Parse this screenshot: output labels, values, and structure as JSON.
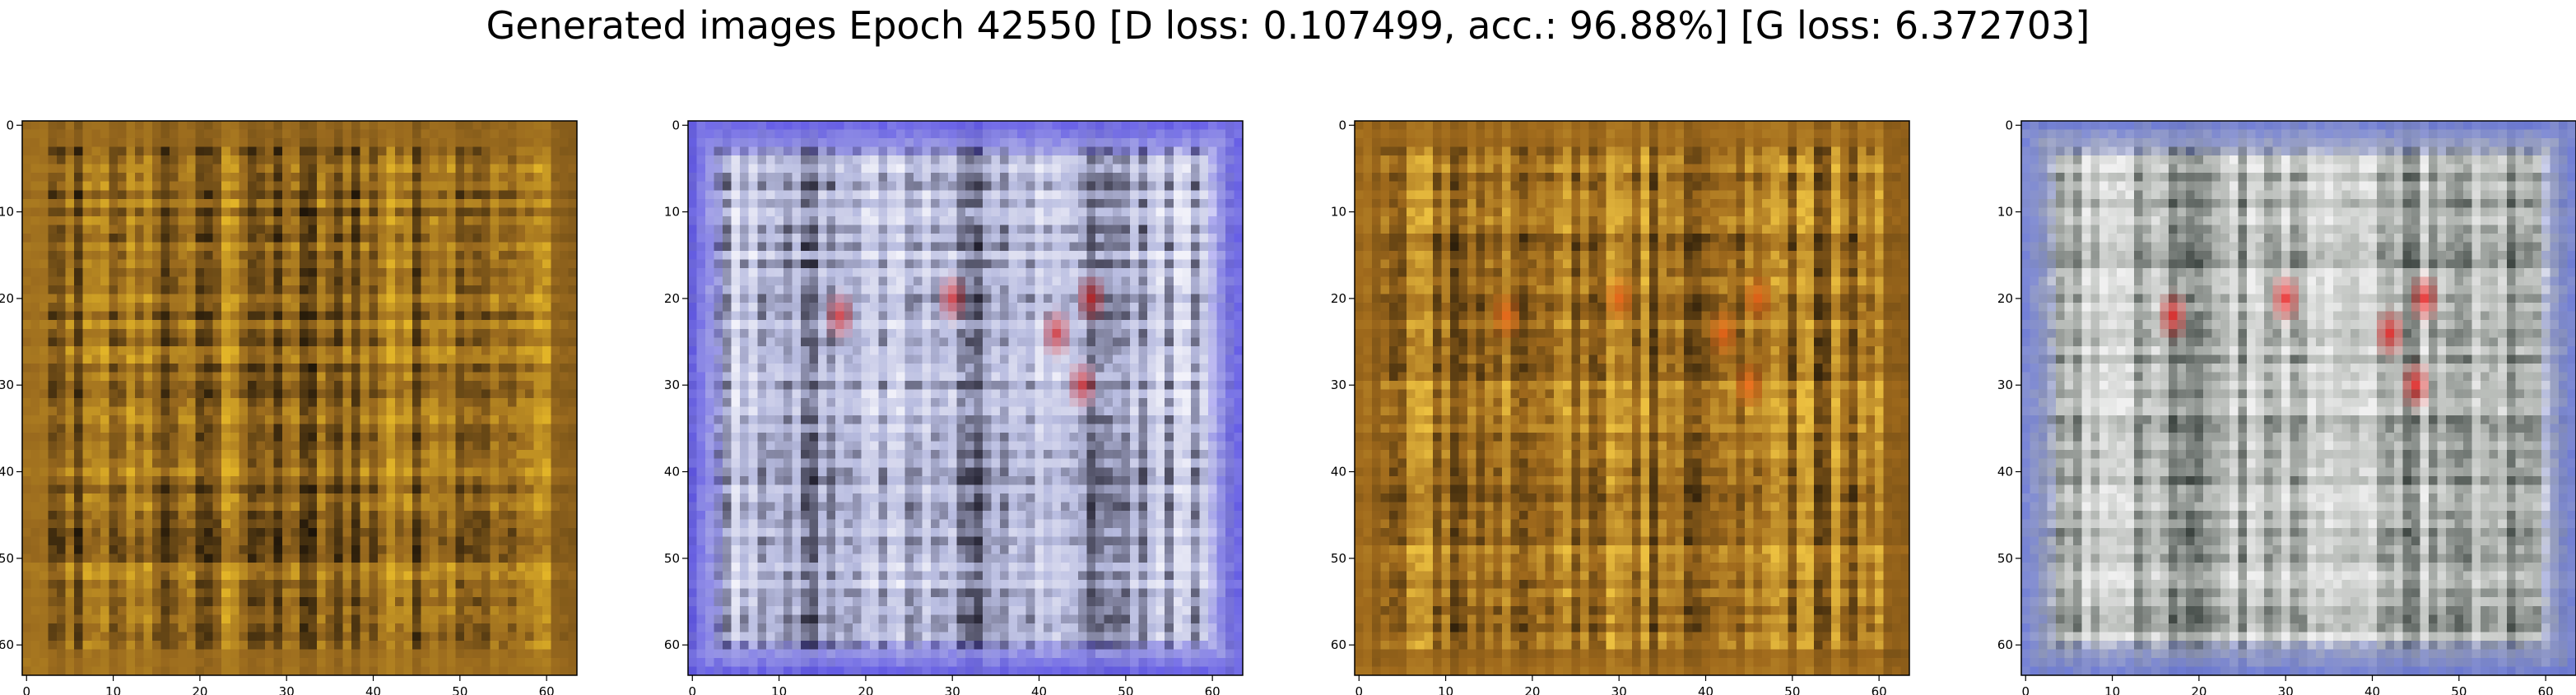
{
  "title": "Generated images Epoch 42550 [D loss: 0.107499, acc.: 96.88%] [G loss: 6.372703]",
  "chart_data": [
    {
      "type": "heatmap",
      "title": "",
      "xlabel": "",
      "ylabel": "",
      "xlim": [
        -0.5,
        63.5
      ],
      "ylim": [
        63.5,
        -0.5
      ],
      "xticks": [
        "0",
        "10",
        "20",
        "30",
        "40",
        "50",
        "60"
      ],
      "yticks": [
        "0",
        "10",
        "20",
        "30",
        "40",
        "50",
        "60"
      ],
      "grid": false,
      "palette": "golden-brown",
      "base_color": "#9a6a1e",
      "highlight_color": "#e2b428",
      "dark_color": "#1a1208",
      "accent_color": "#cc3a1a"
    },
    {
      "type": "heatmap",
      "title": "",
      "xlabel": "",
      "ylabel": "",
      "xlim": [
        -0.5,
        63.5
      ],
      "ylim": [
        63.5,
        -0.5
      ],
      "xticks": [
        "0",
        "10",
        "20",
        "30",
        "40",
        "50",
        "60"
      ],
      "yticks": [
        "0",
        "10",
        "20",
        "30",
        "40",
        "50",
        "60"
      ],
      "grid": false,
      "palette": "blue-white",
      "base_color": "#b8bce0",
      "highlight_color": "#f2f2fa",
      "dark_color": "#1e1c2a",
      "accent_color": "#d82a2a",
      "edge_color": "#4a3ee8"
    },
    {
      "type": "heatmap",
      "title": "",
      "xlabel": "",
      "ylabel": "",
      "xlim": [
        -0.5,
        63.5
      ],
      "ylim": [
        63.5,
        -0.5
      ],
      "xticks": [
        "0",
        "10",
        "20",
        "30",
        "40",
        "50",
        "60"
      ],
      "yticks": [
        "0",
        "10",
        "20",
        "30",
        "40",
        "50",
        "60"
      ],
      "grid": false,
      "palette": "golden-brown",
      "base_color": "#a06a1c",
      "highlight_color": "#ecc040",
      "dark_color": "#1c1408",
      "accent_color": "#f06018"
    },
    {
      "type": "heatmap",
      "title": "",
      "xlabel": "",
      "ylabel": "",
      "xlim": [
        -0.5,
        63.5
      ],
      "ylim": [
        63.5,
        -0.5
      ],
      "xticks": [
        "0",
        "10",
        "20",
        "30",
        "40",
        "50",
        "60"
      ],
      "yticks": [
        "0",
        "10",
        "20",
        "30",
        "40",
        "50",
        "60"
      ],
      "grid": false,
      "palette": "grey-white",
      "base_color": "#b4b8b4",
      "highlight_color": "#f0f0f0",
      "dark_color": "#3c4440",
      "accent_color": "#f01818",
      "edge_color": "#5a6ae0"
    }
  ]
}
